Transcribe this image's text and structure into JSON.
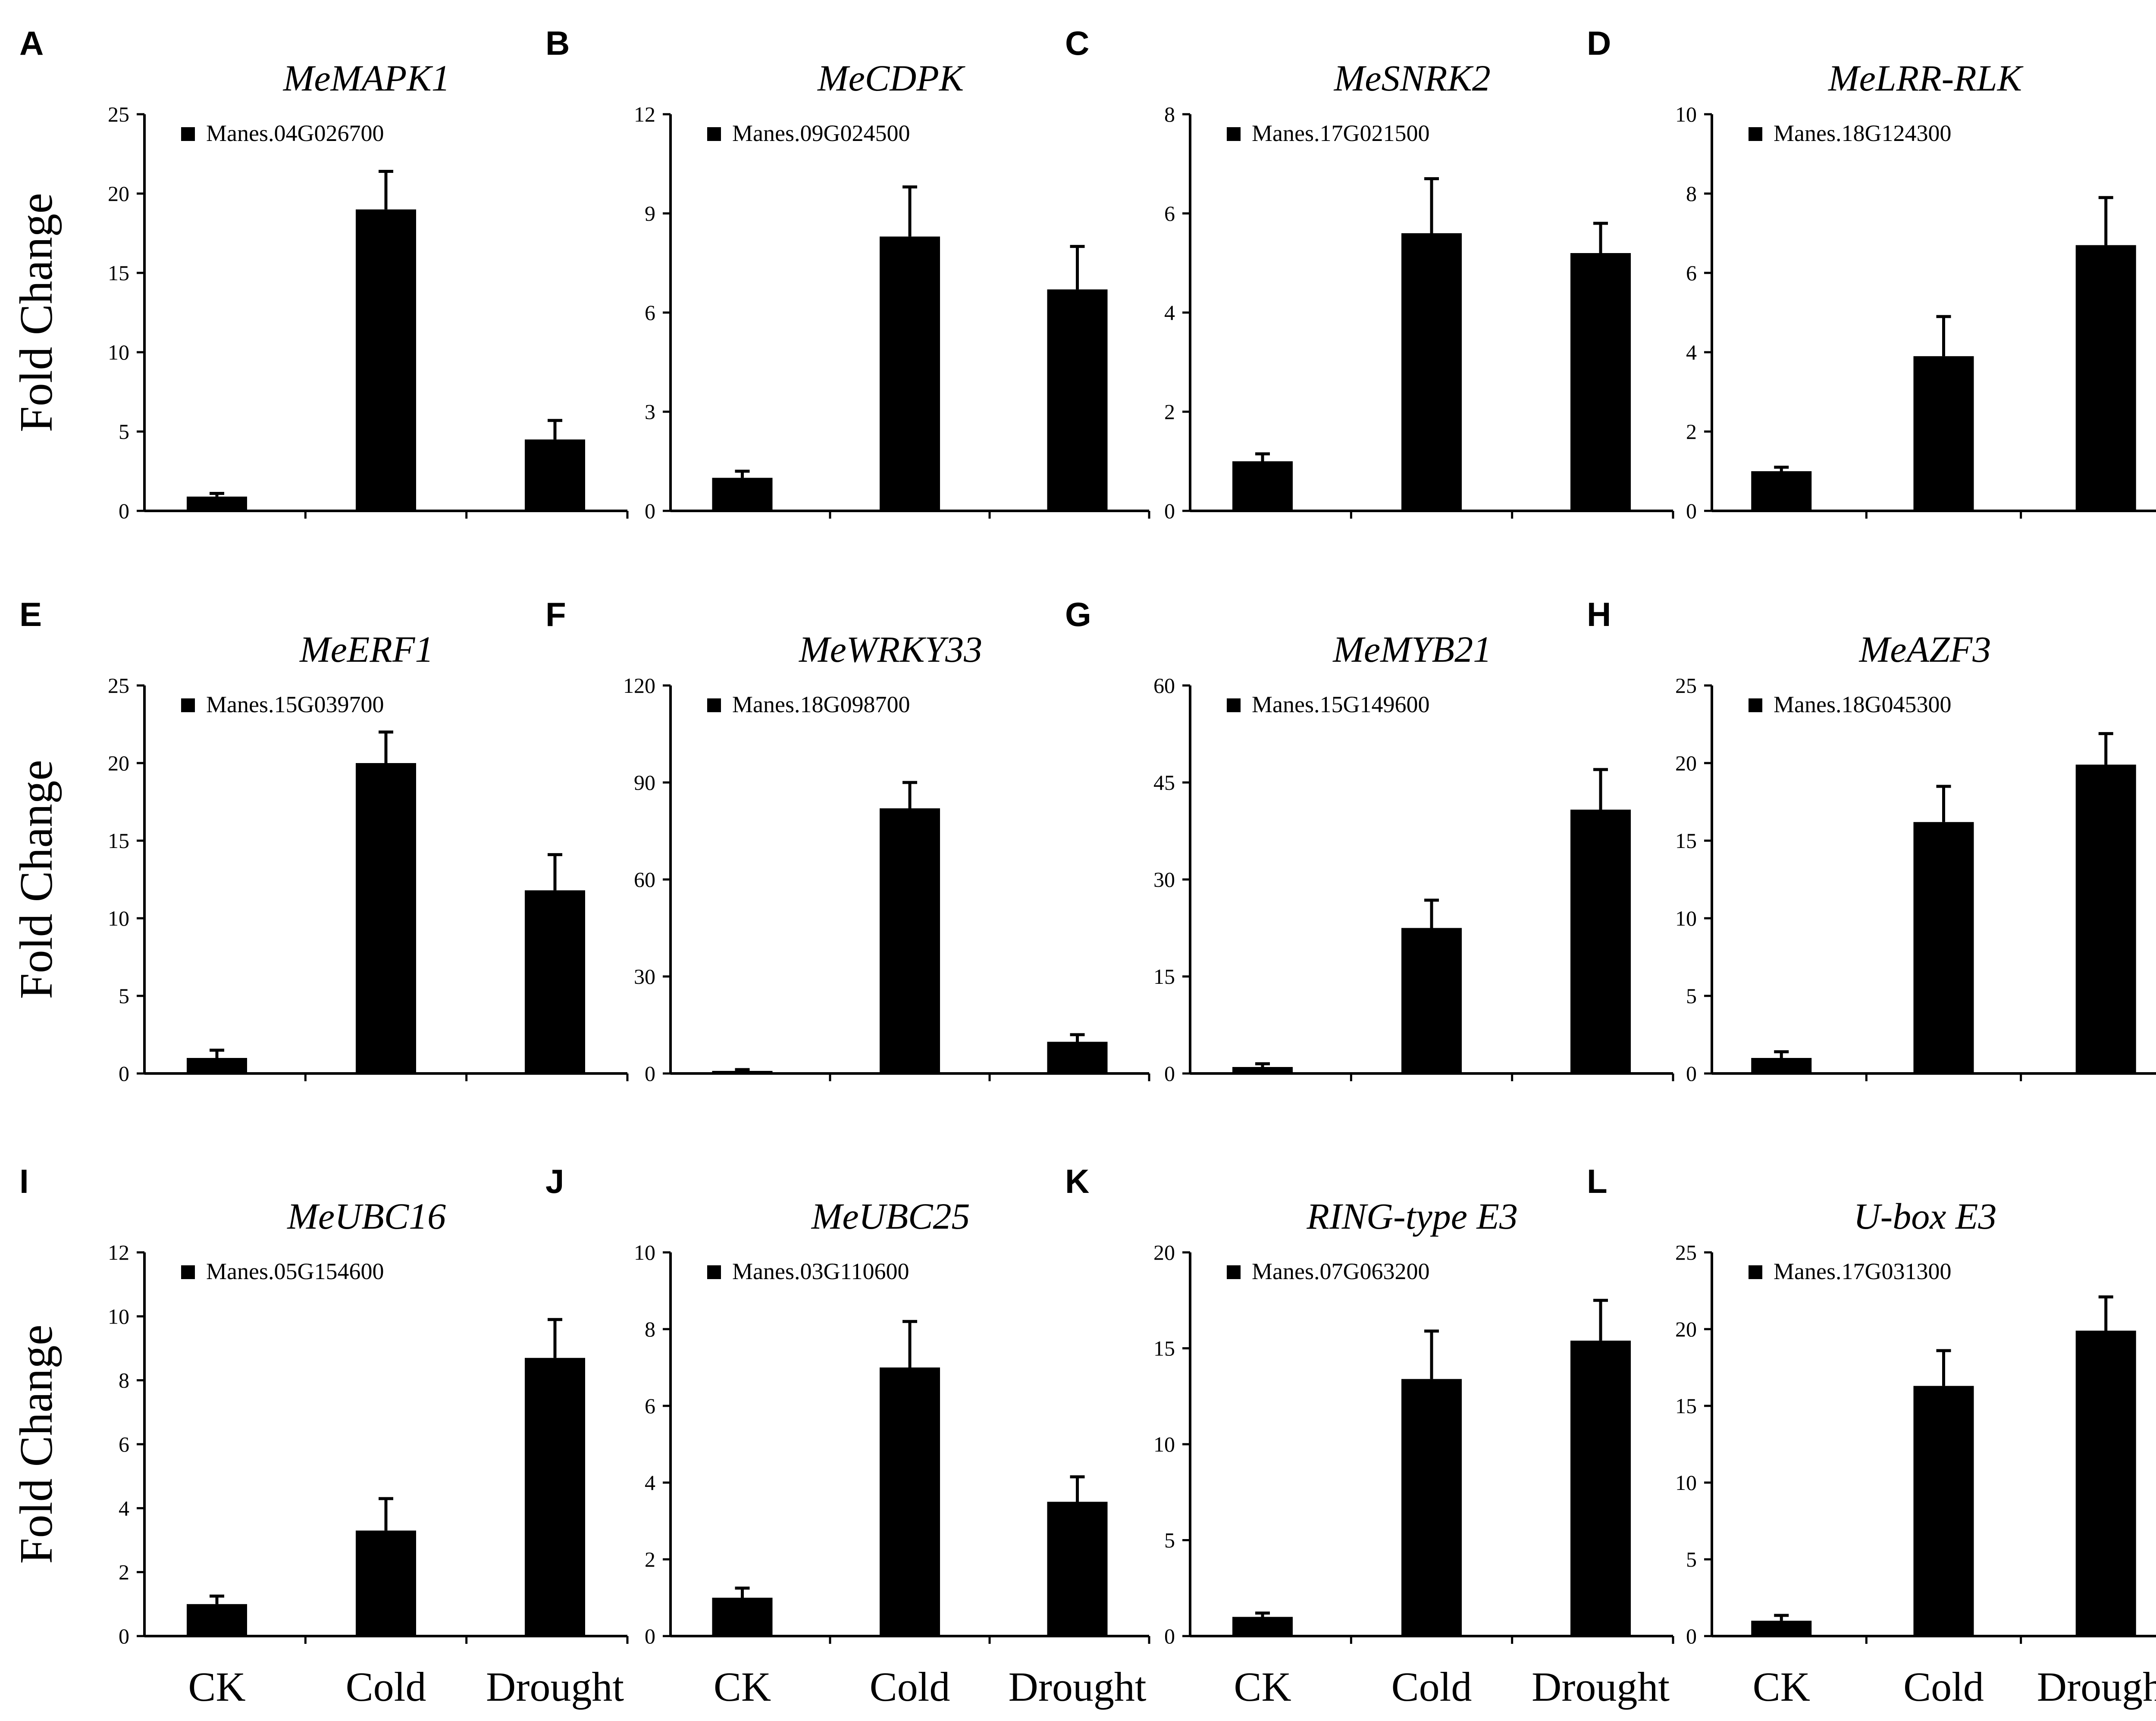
{
  "figure": {
    "y_axis_title": "Fold Change",
    "categories": [
      "CK",
      "Cold",
      "Drought"
    ],
    "bar_color": "#000000"
  },
  "chart_data": [
    {
      "type": "bar",
      "panel": "A",
      "title": "MeMAPK1",
      "legend": "Manes.04G026700",
      "categories": [
        "CK",
        "Cold",
        "Drought"
      ],
      "values": [
        0.9,
        19.0,
        4.5
      ],
      "errors": [
        0.2,
        2.4,
        1.2
      ],
      "ylim": [
        0,
        25
      ],
      "yticks": [
        0,
        5,
        10,
        15,
        20,
        25
      ],
      "ylabel": "Fold Change"
    },
    {
      "type": "bar",
      "panel": "B",
      "title": "MeCDPK",
      "legend": "Manes.09G024500",
      "categories": [
        "CK",
        "Cold",
        "Drought"
      ],
      "values": [
        1.0,
        8.3,
        6.7
      ],
      "errors": [
        0.2,
        1.5,
        1.3
      ],
      "ylim": [
        0,
        12
      ],
      "yticks": [
        0,
        3,
        6,
        9,
        12
      ],
      "ylabel": ""
    },
    {
      "type": "bar",
      "panel": "C",
      "title": "MeSNRK2",
      "legend": "Manes.17G021500",
      "categories": [
        "CK",
        "Cold",
        "Drought"
      ],
      "values": [
        1.0,
        5.6,
        5.2
      ],
      "errors": [
        0.15,
        1.1,
        0.6
      ],
      "ylim": [
        0,
        8
      ],
      "yticks": [
        0,
        2,
        4,
        6,
        8
      ],
      "ylabel": ""
    },
    {
      "type": "bar",
      "panel": "D",
      "title": "MeLRR-RLK",
      "legend": "Manes.18G124300",
      "categories": [
        "CK",
        "Cold",
        "Drought"
      ],
      "values": [
        1.0,
        3.9,
        6.7
      ],
      "errors": [
        0.1,
        1.0,
        1.2
      ],
      "ylim": [
        0,
        10
      ],
      "yticks": [
        0,
        2,
        4,
        6,
        8,
        10
      ],
      "ylabel": ""
    },
    {
      "type": "bar",
      "panel": "E",
      "title": "MeERF1",
      "legend": "Manes.15G039700",
      "categories": [
        "CK",
        "Cold",
        "Drought"
      ],
      "values": [
        1.0,
        20.0,
        11.8
      ],
      "errors": [
        0.5,
        2.0,
        2.3
      ],
      "ylim": [
        0,
        25
      ],
      "yticks": [
        0,
        5,
        10,
        15,
        20,
        25
      ],
      "ylabel": "Fold Change"
    },
    {
      "type": "bar",
      "panel": "F",
      "title": "MeWRKY33",
      "legend": "Manes.18G098700",
      "categories": [
        "CK",
        "Cold",
        "Drought"
      ],
      "values": [
        0.8,
        82.0,
        9.8
      ],
      "errors": [
        0.4,
        8.0,
        2.2
      ],
      "ylim": [
        0,
        120
      ],
      "yticks": [
        0,
        30,
        60,
        90,
        120
      ],
      "ylabel": ""
    },
    {
      "type": "bar",
      "panel": "G",
      "title": "MeMYB21",
      "legend": "Manes.15G149600",
      "categories": [
        "CK",
        "Cold",
        "Drought"
      ],
      "values": [
        1.0,
        22.5,
        40.8
      ],
      "errors": [
        0.5,
        4.3,
        6.2
      ],
      "ylim": [
        0,
        60
      ],
      "yticks": [
        0,
        15,
        30,
        45,
        60
      ],
      "ylabel": ""
    },
    {
      "type": "bar",
      "panel": "H",
      "title": "MeAZF3",
      "legend": "Manes.18G045300",
      "categories": [
        "CK",
        "Cold",
        "Drought"
      ],
      "values": [
        1.0,
        16.2,
        19.9
      ],
      "errors": [
        0.4,
        2.3,
        2.0
      ],
      "ylim": [
        0,
        25
      ],
      "yticks": [
        0,
        5,
        10,
        15,
        20,
        25
      ],
      "ylabel": ""
    },
    {
      "type": "bar",
      "panel": "I",
      "title": "MeUBC16",
      "legend": "Manes.05G154600",
      "categories": [
        "CK",
        "Cold",
        "Drought"
      ],
      "values": [
        1.0,
        3.3,
        8.7
      ],
      "errors": [
        0.25,
        1.0,
        1.2
      ],
      "ylim": [
        0,
        12
      ],
      "yticks": [
        0,
        2,
        4,
        6,
        8,
        10,
        12
      ],
      "ylabel": "Fold Change"
    },
    {
      "type": "bar",
      "panel": "J",
      "title": "MeUBC25",
      "legend": "Manes.03G110600",
      "categories": [
        "CK",
        "Cold",
        "Drought"
      ],
      "values": [
        1.0,
        7.0,
        3.5
      ],
      "errors": [
        0.25,
        1.2,
        0.65
      ],
      "ylim": [
        0,
        10
      ],
      "yticks": [
        0,
        2,
        4,
        6,
        8,
        10
      ],
      "ylabel": ""
    },
    {
      "type": "bar",
      "panel": "K",
      "title": "RING-type E3",
      "legend": "Manes.07G063200",
      "categories": [
        "CK",
        "Cold",
        "Drought"
      ],
      "values": [
        1.0,
        13.4,
        15.4
      ],
      "errors": [
        0.2,
        2.5,
        2.1
      ],
      "ylim": [
        0,
        20
      ],
      "yticks": [
        0,
        5,
        10,
        15,
        20
      ],
      "ylabel": ""
    },
    {
      "type": "bar",
      "panel": "L",
      "title": "U-box E3",
      "legend": "Manes.17G031300",
      "categories": [
        "CK",
        "Cold",
        "Drought"
      ],
      "values": [
        1.0,
        16.3,
        19.9
      ],
      "errors": [
        0.35,
        2.3,
        2.2
      ],
      "ylim": [
        0,
        25
      ],
      "yticks": [
        0,
        5,
        10,
        15,
        20,
        25
      ],
      "ylabel": ""
    }
  ]
}
